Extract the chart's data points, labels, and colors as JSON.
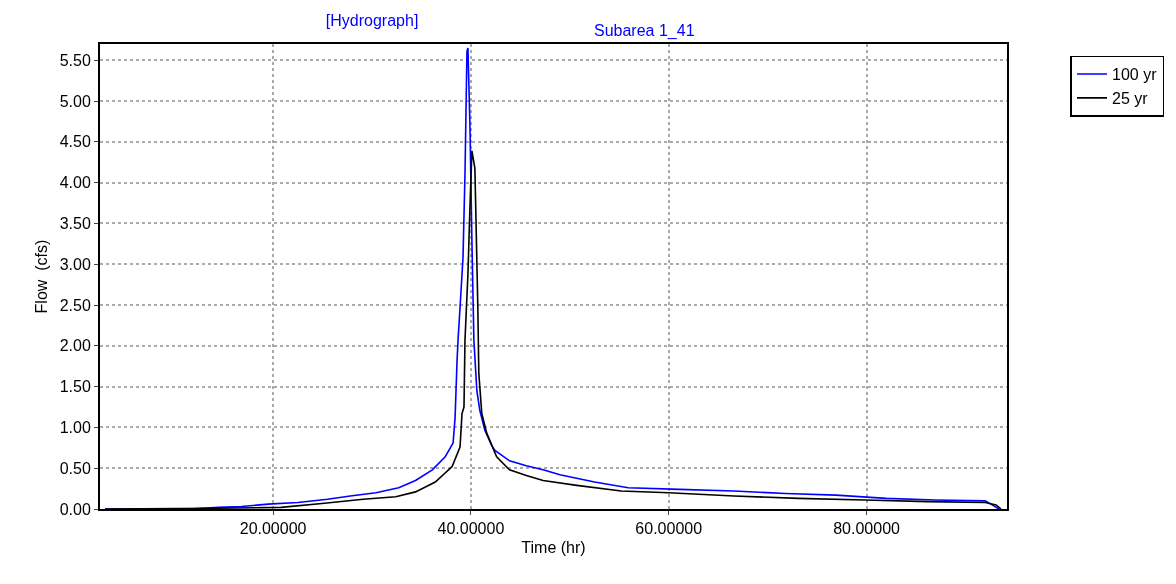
{
  "chart_data": {
    "type": "line",
    "title": "[Hydrograph]",
    "subtitle": "Subarea 1_41",
    "xlabel": "Time (hr)",
    "ylabel": "Flow  (cfs)",
    "xlim": [
      2.5,
      94.2
    ],
    "ylim": [
      0,
      5.7
    ],
    "xticks": [
      {
        "value": 20,
        "label": "20.00000"
      },
      {
        "value": 40,
        "label": "40.00000"
      },
      {
        "value": 60,
        "label": "60.00000"
      },
      {
        "value": 80,
        "label": "80.00000"
      }
    ],
    "yticks": [
      {
        "value": 0,
        "label": "0.00"
      },
      {
        "value": 0.5,
        "label": "0.50"
      },
      {
        "value": 1,
        "label": "1.00"
      },
      {
        "value": 1.5,
        "label": "1.50"
      },
      {
        "value": 2,
        "label": "2.00"
      },
      {
        "value": 2.5,
        "label": "2.50"
      },
      {
        "value": 3,
        "label": "3.00"
      },
      {
        "value": 3.5,
        "label": "3.50"
      },
      {
        "value": 4,
        "label": "4.00"
      },
      {
        "value": 4.5,
        "label": "4.50"
      },
      {
        "value": 5,
        "label": "5.00"
      },
      {
        "value": 5.5,
        "label": "5.50"
      }
    ],
    "grid": true,
    "legend": "top right",
    "marker": "none",
    "line_style": "solid",
    "series": [
      {
        "name": "100 yr",
        "color": "#0000ff",
        "x": [
          3,
          11.5,
          14.5,
          16.8,
          19.5,
          22.5,
          25.5,
          27.8,
          30.4,
          32.7,
          34.4,
          36.1,
          37.4,
          38.2,
          38.4,
          38.6,
          38.7,
          38.9,
          39.2,
          39.4,
          39.6,
          39.7,
          39.9,
          40.1,
          40.3,
          40.6,
          40.9,
          41.4,
          42.1,
          42.4,
          43.9,
          45.6,
          47.3,
          49.0,
          52.5,
          55.9,
          61.1,
          66.6,
          71.8,
          76.9,
          82.0,
          86.9,
          92.0,
          92.7,
          93.4
        ],
        "values": [
          0,
          0,
          0.02,
          0.03,
          0.06,
          0.08,
          0.12,
          0.16,
          0.2,
          0.26,
          0.35,
          0.48,
          0.64,
          0.81,
          1.12,
          1.82,
          2.07,
          2.47,
          3.08,
          4.1,
          5.61,
          5.65,
          4.72,
          3.29,
          2.07,
          1.45,
          1.21,
          0.97,
          0.78,
          0.72,
          0.59,
          0.53,
          0.48,
          0.42,
          0.33,
          0.26,
          0.24,
          0.22,
          0.19,
          0.17,
          0.13,
          0.11,
          0.1,
          0.05,
          0
        ]
      },
      {
        "name": "25 yr",
        "color": "#000000",
        "x": [
          3,
          14.2,
          20.8,
          25.2,
          29.1,
          32.4,
          34.4,
          36.4,
          38.1,
          38.9,
          39.1,
          39.3,
          39.4,
          39.7,
          39.9,
          40.1,
          40.4,
          40.5,
          40.7,
          40.8,
          41.1,
          41.6,
          42.6,
          43.9,
          45.6,
          47.3,
          50.7,
          55.2,
          60.0,
          66.6,
          73.1,
          79.8,
          86.2,
          92.0,
          93.1,
          93.6
        ],
        "values": [
          0,
          0.01,
          0.02,
          0.07,
          0.12,
          0.15,
          0.21,
          0.33,
          0.52,
          0.76,
          1.17,
          1.25,
          2.07,
          2.88,
          3.69,
          4.39,
          4.18,
          3.62,
          2.47,
          1.66,
          1.17,
          0.93,
          0.64,
          0.48,
          0.41,
          0.35,
          0.29,
          0.22,
          0.2,
          0.16,
          0.13,
          0.11,
          0.09,
          0.08,
          0.05,
          0
        ]
      }
    ]
  }
}
